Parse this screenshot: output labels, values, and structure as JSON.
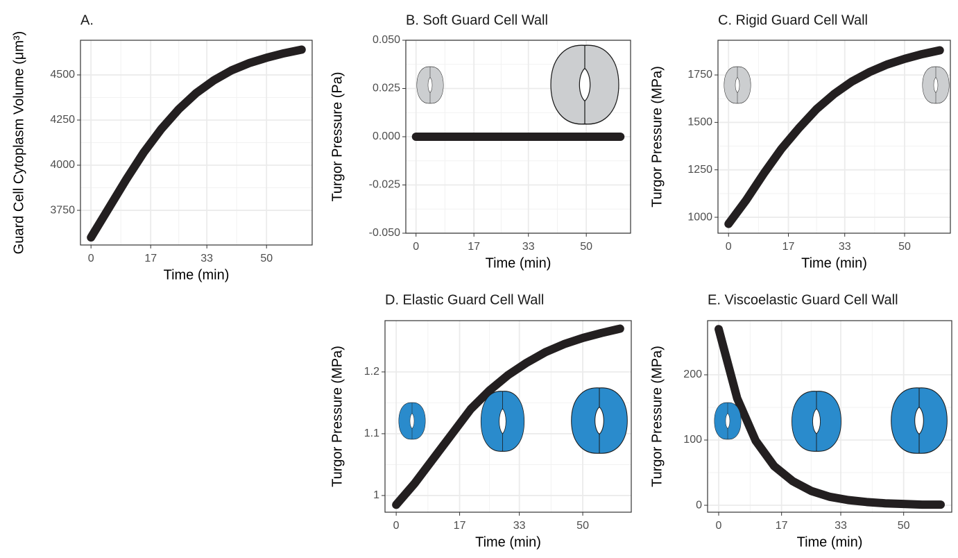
{
  "chart_data": [
    {
      "type": "line",
      "title": "A.",
      "x_label": "Time (min)",
      "y_label": "Guard Cell Cytoplasm Volume (μm³)",
      "x": [
        0,
        5,
        10,
        15,
        20,
        25,
        30,
        35,
        40,
        45,
        50,
        55,
        60
      ],
      "values": [
        3600,
        3760,
        3920,
        4070,
        4200,
        4310,
        4400,
        4470,
        4525,
        4565,
        4595,
        4620,
        4640
      ],
      "color": "#231f20",
      "xlim": [
        -3,
        63
      ],
      "xticks": [
        0,
        17,
        33,
        50
      ],
      "ylim": [
        3558,
        4692
      ],
      "yticks": [
        3750,
        4000,
        4250,
        4500
      ],
      "grid": true
    },
    {
      "type": "line",
      "title": "B. Soft Guard Cell Wall",
      "x_label": "Time (min)",
      "y_label": "Turgor Pressure (Pa)",
      "x": [
        0,
        5,
        10,
        15,
        20,
        25,
        30,
        35,
        40,
        45,
        50,
        55,
        60
      ],
      "values": [
        0,
        0,
        0,
        0,
        0,
        0,
        0,
        0,
        0,
        0,
        0,
        0,
        0
      ],
      "color": "#231f20",
      "xlim": [
        -3,
        63
      ],
      "xticks": [
        0,
        17,
        33,
        50
      ],
      "ylim": [
        -0.05,
        0.05
      ],
      "yticks": [
        {
          "value": -0.05,
          "label": "-0.050"
        },
        {
          "value": -0.025,
          "label": "-0.025"
        },
        {
          "value": 0,
          "label": "0.000"
        },
        {
          "value": 0.025,
          "label": "0.025"
        },
        {
          "value": 0.05,
          "label": "0.050"
        }
      ],
      "grid": true
    },
    {
      "type": "line",
      "title": "C. Rigid Guard Cell Wall",
      "x_label": "Time (min)",
      "y_label": "Turgor Pressure (MPa)",
      "x": [
        0,
        5,
        10,
        15,
        20,
        25,
        30,
        35,
        40,
        45,
        50,
        55,
        60
      ],
      "values": [
        965,
        1090,
        1230,
        1360,
        1470,
        1570,
        1650,
        1715,
        1765,
        1805,
        1835,
        1860,
        1880
      ],
      "color": "#231f20",
      "xlim": [
        -3,
        63
      ],
      "xticks": [
        0,
        17,
        33,
        50
      ],
      "ylim": [
        916,
        1933
      ],
      "yticks": [
        1000,
        1250,
        1500,
        1750
      ],
      "grid": true
    },
    {
      "type": "line",
      "title": "D. Elastic Guard Cell Wall",
      "x_label": "Time (min)",
      "y_label": "Turgor Pressure (MPa)",
      "x": [
        0,
        5,
        10,
        15,
        20,
        25,
        30,
        35,
        40,
        45,
        50,
        55,
        60
      ],
      "values": [
        0.985,
        1.02,
        1.06,
        1.1,
        1.14,
        1.17,
        1.195,
        1.215,
        1.232,
        1.245,
        1.255,
        1.263,
        1.27
      ],
      "color": "#231f20",
      "xlim": [
        -3,
        63
      ],
      "xticks": [
        0,
        17,
        33,
        50
      ],
      "ylim": [
        0.973,
        1.283
      ],
      "yticks": [
        1,
        1.1,
        1.2
      ],
      "grid": true
    },
    {
      "type": "line",
      "title": "E. Viscoelastic Guard Cell Wall",
      "x_label": "Time (min)",
      "y_label": "Turgor Pressure (MPa)",
      "x": [
        0,
        5,
        10,
        15,
        20,
        25,
        30,
        35,
        40,
        45,
        50,
        55,
        60
      ],
      "values": [
        270,
        164,
        99,
        60,
        37,
        22,
        13,
        8,
        5,
        3,
        2,
        1,
        1
      ],
      "color": "#231f20",
      "xlim": [
        -3,
        63
      ],
      "xticks": [
        0,
        17,
        33,
        50
      ],
      "ylim": [
        -10.6,
        283
      ],
      "yticks": [
        0,
        100,
        200
      ],
      "grid": true
    }
  ]
}
